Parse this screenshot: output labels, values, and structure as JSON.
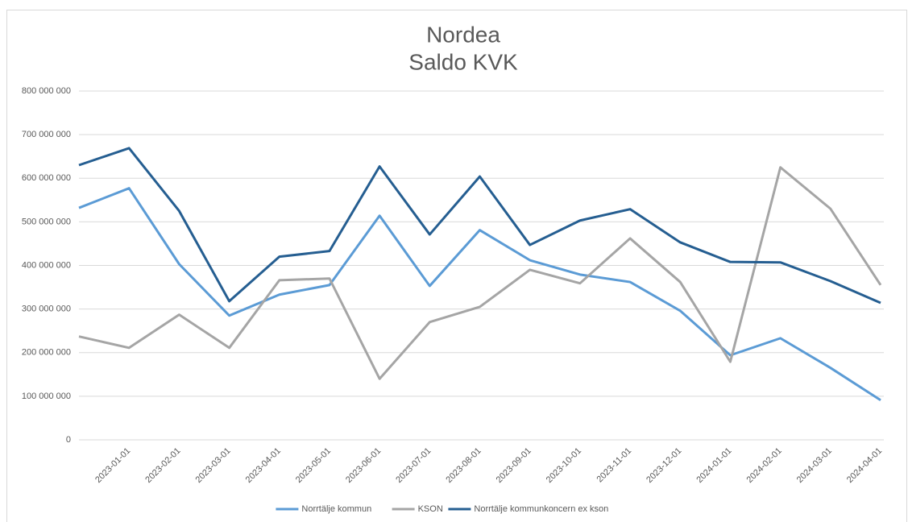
{
  "chart_data": {
    "type": "line",
    "title": "Nordea",
    "subtitle": "Saldo KVK",
    "categories": [
      null,
      "2023-01-01",
      "2023-02-01",
      "2023-03-01",
      "2023-04-01",
      "2023-05-01",
      "2023-06-01",
      "2023-07-01",
      "2023-08-01",
      "2023-09-01",
      "2023-10-01",
      "2023-11-01",
      "2023-12-01",
      "2024-01-01",
      "2024-02-01",
      "2024-03-01",
      "2024-04-01"
    ],
    "series": [
      {
        "name": "Norrtälje kommun",
        "color": "#5b9bd5",
        "values": [
          532000000,
          577000000,
          403000000,
          285000000,
          333000000,
          355000000,
          514000000,
          353000000,
          481000000,
          412000000,
          379000000,
          362000000,
          296000000,
          194000000,
          233000000,
          165000000,
          91000000
        ]
      },
      {
        "name": "KSON",
        "color": "#a5a5a5",
        "values": [
          237000000,
          211000000,
          287000000,
          211000000,
          366000000,
          370000000,
          140000000,
          270000000,
          305000000,
          390000000,
          359000000,
          462000000,
          362000000,
          179000000,
          625000000,
          530000000,
          355000000
        ]
      },
      {
        "name": "Norrtälje kommunkoncern ex kson",
        "color": "#255e91",
        "values": [
          630000000,
          669000000,
          525000000,
          318000000,
          420000000,
          433000000,
          627000000,
          471000000,
          604000000,
          447000000,
          503000000,
          529000000,
          453000000,
          408000000,
          407000000,
          364000000,
          314000000
        ]
      }
    ],
    "ylim": [
      0,
      800000000
    ],
    "yticks": [
      0,
      {
        "value": 100000000,
        "label": "100 000 000"
      },
      {
        "value": 200000000,
        "label": "200 000 000"
      },
      {
        "value": 300000000,
        "label": "300 000 000"
      },
      {
        "value": 400000000,
        "label": "400 000 000"
      },
      {
        "value": 500000000,
        "label": "500 000 000"
      },
      {
        "value": 600000000,
        "label": "600 000 000"
      },
      {
        "value": 700000000,
        "label": "700 000 000"
      },
      {
        "value": 800000000,
        "label": "800 000 000"
      }
    ],
    "grid": true,
    "legend": "bottom"
  }
}
